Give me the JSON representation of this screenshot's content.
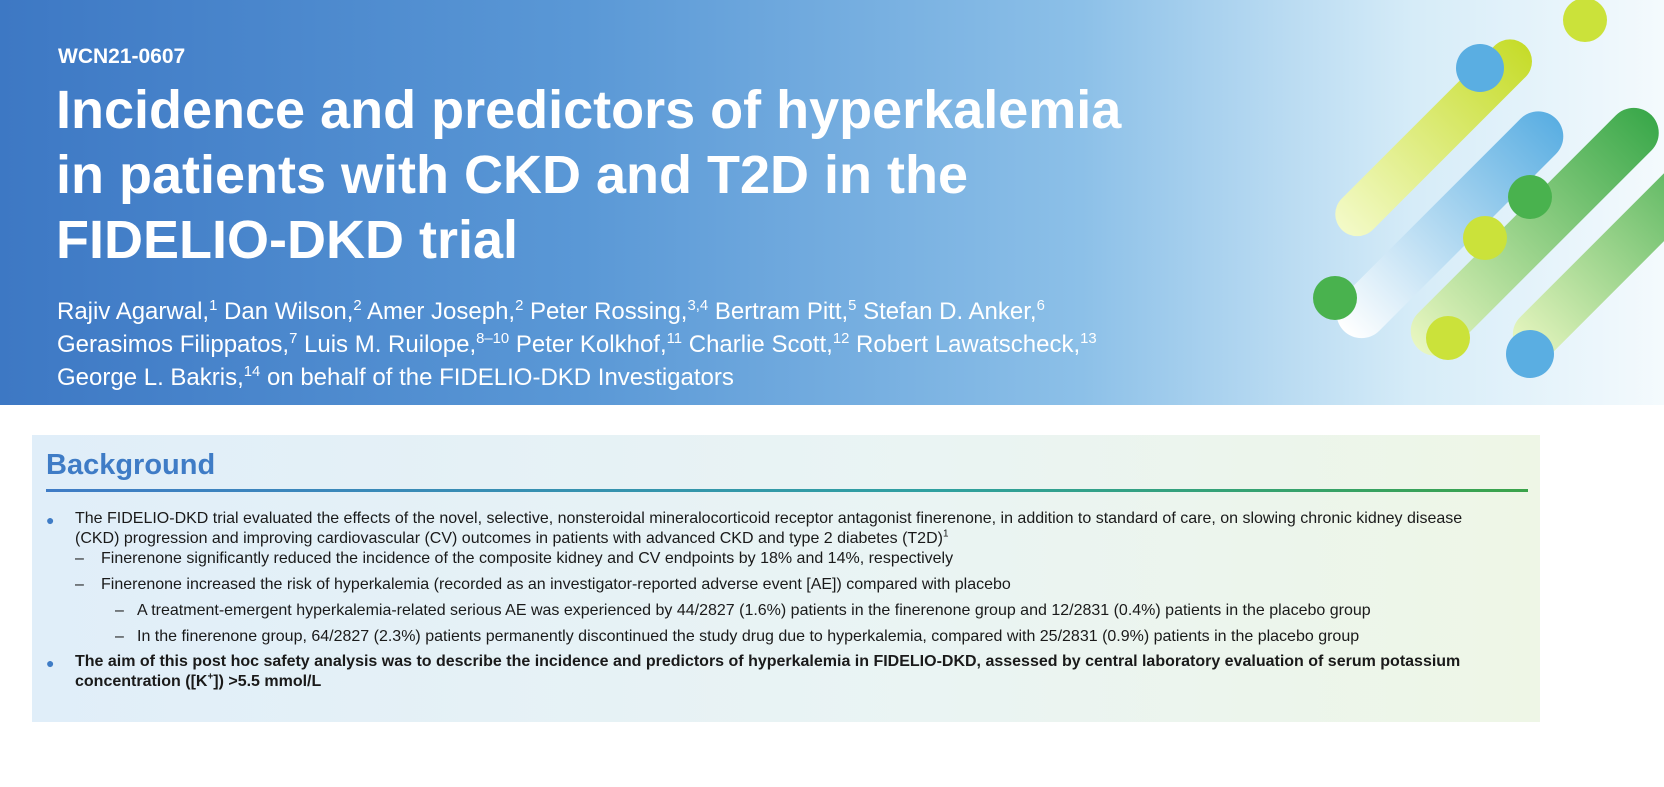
{
  "header": {
    "code": "WCN21-0607",
    "title_lines": [
      "Incidence and predictors of hyperkalemia",
      "in patients with CKD and T2D in the",
      "FIDELIO-DKD trial"
    ],
    "author_lines": [
      [
        {
          "name": "Rajiv Agarwal,",
          "aff": "1"
        },
        {
          "name": "Dan Wilson,",
          "aff": "2"
        },
        {
          "name": "Amer Joseph,",
          "aff": "2"
        },
        {
          "name": "Peter Rossing,",
          "aff": "3,4"
        },
        {
          "name": "Bertram Pitt,",
          "aff": "5"
        },
        {
          "name": "Stefan D. Anker,",
          "aff": "6"
        }
      ],
      [
        {
          "name": "Gerasimos Filippatos,",
          "aff": "7"
        },
        {
          "name": "Luis M. Ruilope,",
          "aff": "8–10"
        },
        {
          "name": "Peter Kolkhof,",
          "aff": "11"
        },
        {
          "name": "Charlie Scott,",
          "aff": "12"
        },
        {
          "name": "Robert Lawatscheck,",
          "aff": "13"
        }
      ],
      [
        {
          "name": "George L. Bakris,",
          "aff": "14"
        }
      ]
    ],
    "authors_suffix": "on behalf of the FIDELIO-DKD Investigators"
  },
  "background": {
    "heading": "Background",
    "bullet1": {
      "text": "The FIDELIO-DKD trial evaluated the effects of the novel, selective, nonsteroidal mineralocorticoid receptor antagonist finerenone, in addition to standard of care, on slowing chronic kidney disease (CKD) progression and improving cardiovascular (CV) outcomes in patients with advanced CKD and type 2 diabetes (T2D)",
      "sup": "1",
      "sub": [
        "Finerenone significantly reduced the incidence of the composite kidney and CV endpoints by 18% and 14%, respectively",
        "Finerenone increased the risk of hyperkalemia (recorded as an investigator-reported adverse event [AE]) compared with placebo"
      ],
      "subsub": [
        "A treatment-emergent hyperkalemia-related serious AE was experienced by 44/2827 (1.6%) patients in the finerenone group and 12/2831 (0.4%) patients in the placebo group",
        "In the finerenone group, 64/2827 (2.3%) patients permanently discontinued the study drug due to hyperkalemia, compared with 25/2831 (0.9%) patients in the placebo group"
      ]
    },
    "bullet2": {
      "before": "The aim of this post hoc safety analysis was to describe the incidence and predictors of hyperkalemia in FIDELIO-DKD, assessed by central laboratory evaluation of serum potassium concentration ([K",
      "sup": "+",
      "after": "]) >5.5 mmol/L"
    }
  }
}
